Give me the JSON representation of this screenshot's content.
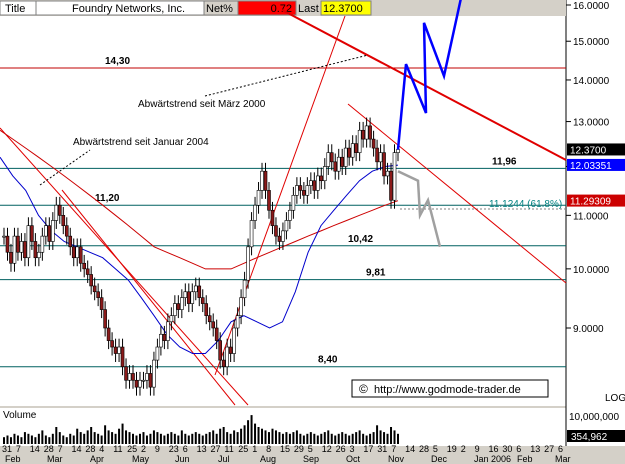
{
  "header": {
    "title_label": "Title",
    "symbol": "Foundry Networks, Inc.",
    "net_label": "Net%",
    "net_value": "0.72",
    "last_label": "Last",
    "last_value": "12.3700"
  },
  "colors": {
    "background": "#ffffff",
    "frame": "#d4d0c8",
    "price_bar": "#000000",
    "ma_fast": "#0000cc",
    "ma_slow": "#cc0000",
    "trend_line": "#ff0000",
    "horizontal_line": "#006060",
    "projection_up": "#0000ff",
    "projection_down": "#a0a0a0",
    "last_tag": "#000000",
    "ma_fast_tag": "#0000ff",
    "ma_slow_tag": "#cc0000"
  },
  "chart_data": {
    "type": "candlestick",
    "scale": "log",
    "ylim": [
      8.0,
      16.2
    ],
    "y_ticks": [
      {
        "value": 9,
        "label": "9.0000"
      },
      {
        "value": 10,
        "label": "10.0000"
      },
      {
        "value": 11,
        "label": "11.0000"
      },
      {
        "value": 12,
        "label": "12.0000"
      },
      {
        "value": 13,
        "label": "13.0000"
      },
      {
        "value": 14,
        "label": "14.0000"
      },
      {
        "value": 15,
        "label": "15.0000"
      },
      {
        "value": 16,
        "label": "16.0000"
      }
    ],
    "scale_label": "LOG",
    "x_ticks": [
      "31",
      "7",
      "14",
      "28",
      "7",
      "14",
      "28",
      "4",
      "11",
      "25",
      "2",
      "9",
      "23",
      "6",
      "13",
      "27",
      "11",
      "25",
      "1",
      "8",
      "15",
      "29",
      "5",
      "12",
      "26",
      "3",
      "17",
      "31",
      "7",
      "14",
      "28",
      "5",
      "19",
      "2",
      "9",
      "16",
      "30",
      "6",
      "13",
      "27",
      "6"
    ],
    "month_labels": [
      "Feb",
      "Mar",
      "Apr",
      "May",
      "Jun",
      "Jul",
      "Aug",
      "Sep",
      "Oct",
      "Nov",
      "Dec",
      "Jan 2006",
      "Feb",
      "Mar"
    ],
    "horizontal_levels": [
      {
        "value": 14.3,
        "label": "14,30"
      },
      {
        "value": 11.96,
        "label": "11,96"
      },
      {
        "value": 11.2,
        "label": "11,20"
      },
      {
        "value": 10.42,
        "label": "10,42"
      },
      {
        "value": 9.81,
        "label": "9,81"
      },
      {
        "value": 8.4,
        "label": "8,40"
      }
    ],
    "fib_label": "11.1244 (61.8%)",
    "annotations": [
      "Abwärtstrend seit März 2000",
      "Abwärtstrend seit Januar 2004"
    ],
    "price_tags": [
      {
        "value": 12.37,
        "label": "12.3700",
        "kind": "last"
      },
      {
        "value": 12.03351,
        "label": "12.03351",
        "kind": "ma_fast"
      },
      {
        "value": 11.29309,
        "label": "11.29309",
        "kind": "ma_slow"
      }
    ],
    "closes": [
      10.6,
      10.3,
      10.1,
      10.6,
      10.3,
      10.5,
      10.2,
      10.8,
      10.5,
      10.2,
      10.3,
      10.6,
      10.8,
      10.5,
      10.9,
      11.2,
      11.0,
      10.8,
      10.6,
      10.4,
      10.2,
      10.4,
      10.1,
      10.0,
      9.9,
      9.7,
      9.6,
      9.5,
      9.3,
      9.0,
      8.8,
      8.7,
      8.6,
      8.7,
      8.4,
      8.2,
      8.3,
      8.2,
      8.1,
      8.2,
      8.2,
      8.3,
      8.1,
      8.5,
      8.7,
      8.9,
      8.8,
      9.1,
      9.2,
      9.4,
      9.3,
      9.5,
      9.6,
      9.4,
      9.6,
      9.7,
      9.5,
      9.4,
      9.2,
      9.1,
      9.0,
      8.8,
      8.5,
      8.4,
      8.7,
      8.6,
      9.0,
      9.2,
      9.5,
      9.8,
      10.4,
      10.9,
      11.2,
      11.5,
      11.9,
      11.5,
      11.1,
      10.8,
      10.6,
      10.5,
      10.7,
      10.9,
      11.1,
      11.4,
      11.6,
      11.5,
      11.4,
      11.6,
      11.7,
      11.5,
      11.8,
      11.7,
      12.0,
      12.3,
      12.1,
      11.9,
      12.2,
      12.0,
      12.4,
      12.2,
      12.5,
      12.3,
      12.8,
      12.6,
      12.9,
      12.6,
      12.4,
      12.1,
      12.3,
      11.8,
      11.9,
      11.3,
      12.3,
      12.37
    ],
    "ma_fast": [
      12.2,
      11.8,
      11.5,
      11.0,
      10.7,
      10.5,
      10.4,
      10.3,
      10.2,
      10.0,
      9.8,
      9.5,
      9.2,
      8.9,
      8.7,
      8.6,
      8.6,
      8.8,
      9.1,
      9.2,
      9.1,
      9.0,
      9.1,
      9.6,
      10.3,
      10.8,
      11.1,
      11.4,
      11.7,
      11.9,
      12.0,
      12.03
    ],
    "ma_slow": [
      12.8,
      12.6,
      12.4,
      12.2,
      12.0,
      11.8,
      11.6,
      11.4,
      11.2,
      11.0,
      10.8,
      10.6,
      10.4,
      10.3,
      10.2,
      10.1,
      10.0,
      10.0,
      10.0,
      10.1,
      10.2,
      10.3,
      10.4,
      10.5,
      10.6,
      10.7,
      10.8,
      10.9,
      11.0,
      11.1,
      11.2,
      11.29
    ],
    "projection_up": [
      12.37,
      14.4,
      13.2,
      15.5,
      14.1,
      16.6
    ],
    "projection_down": [
      11.9,
      11.7,
      11.0,
      11.3,
      10.4
    ],
    "volume": {
      "label": "Volume",
      "y_ticks": [
        {
          "value": 10000000,
          "label": "10,000,000"
        },
        {
          "value": 354962,
          "label": "354,962"
        }
      ],
      "bars": [
        0.2,
        0.25,
        0.2,
        0.3,
        0.25,
        0.2,
        0.35,
        0.3,
        0.25,
        0.2,
        0.3,
        0.4,
        0.25,
        0.2,
        0.3,
        0.5,
        0.35,
        0.25,
        0.2,
        0.3,
        0.25,
        0.45,
        0.35,
        0.3,
        0.4,
        0.5,
        0.35,
        0.3,
        0.25,
        0.55,
        0.4,
        0.35,
        0.3,
        0.45,
        0.6,
        0.4,
        0.35,
        0.3,
        0.25,
        0.3,
        0.35,
        0.25,
        0.3,
        0.4,
        0.35,
        0.3,
        0.25,
        0.3,
        0.35,
        0.3,
        0.25,
        0.4,
        0.3,
        0.25,
        0.3,
        0.35,
        0.3,
        0.25,
        0.3,
        0.35,
        0.4,
        0.3,
        0.45,
        0.5,
        0.35,
        0.3,
        0.4,
        0.35,
        0.45,
        0.55,
        0.7,
        0.85,
        0.6,
        0.5,
        0.45,
        0.4,
        0.35,
        0.45,
        0.4,
        0.35,
        0.3,
        0.35,
        0.3,
        0.35,
        0.4,
        0.3,
        0.25,
        0.3,
        0.35,
        0.3,
        0.25,
        0.3,
        0.35,
        0.4,
        0.3,
        0.25,
        0.3,
        0.35,
        0.3,
        0.25,
        0.3,
        0.35,
        0.4,
        0.3,
        0.25,
        0.3,
        0.35,
        0.55,
        0.4,
        0.35,
        0.3,
        0.5,
        0.4,
        0.3
      ]
    }
  },
  "watermark": "http://www.godmode-trader.de"
}
